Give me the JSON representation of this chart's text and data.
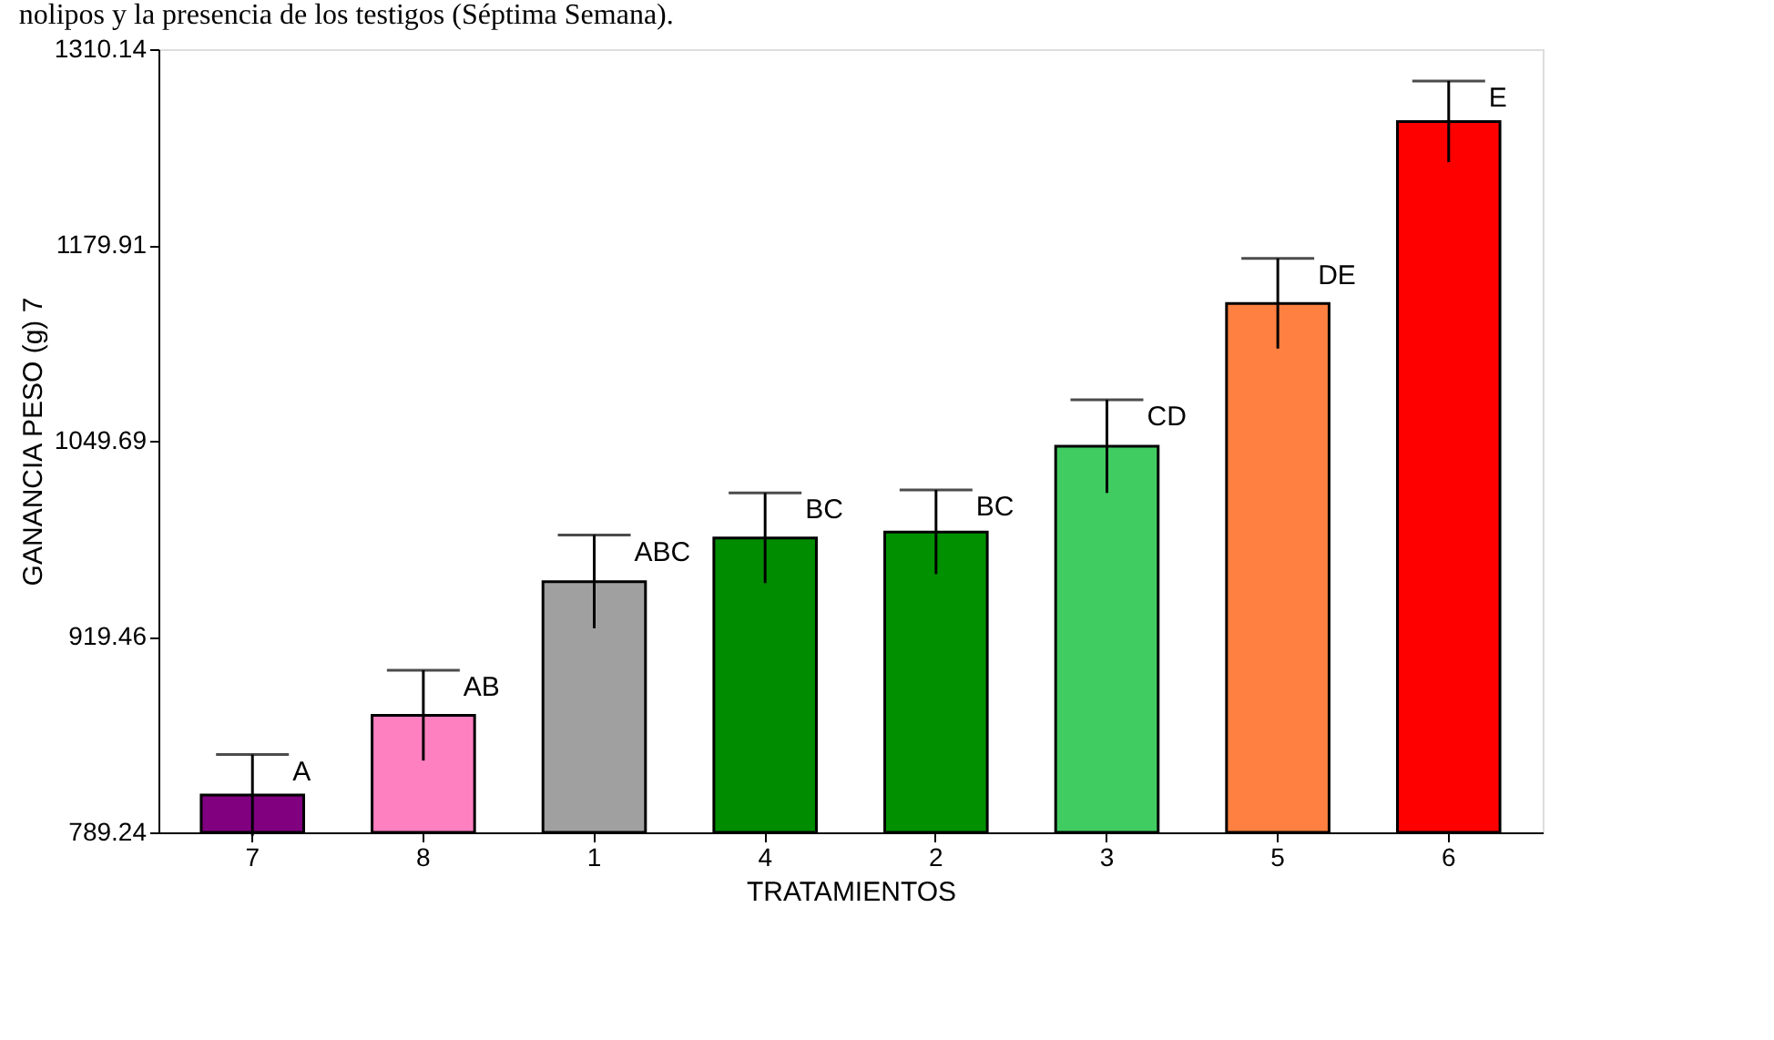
{
  "chart_data": {
    "type": "bar",
    "title": "nolipos y la presencia de los testigos (Séptima Semana).",
    "xlabel": "TRATAMIENTOS",
    "ylabel": "GANANCIA PESO (g) 7",
    "categories": [
      "7",
      "8",
      "1",
      "4",
      "2",
      "3",
      "5",
      "6"
    ],
    "values": [
      814,
      867,
      956,
      985,
      989,
      1046,
      1141,
      1262
    ],
    "colors": [
      "#800080",
      "#ff80c0",
      "#a0a0a0",
      "#008c00",
      "#009000",
      "#40cc60",
      "#ff8040",
      "#ff0000"
    ],
    "errors": [
      27,
      30,
      31,
      30,
      28,
      31,
      30,
      27
    ],
    "ylim": [
      789.24,
      1310.14
    ],
    "yticks": [
      789.24,
      919.46,
      1049.69,
      1179.91,
      1310.14
    ],
    "grid": false,
    "annotations": [
      {
        "text": "A",
        "x": "7",
        "y": 841
      },
      {
        "text": "AB",
        "x": "8",
        "y": 897
      },
      {
        "text": "ABC",
        "x": "1",
        "y": 987
      },
      {
        "text": "BC",
        "x": "4",
        "y": 1015
      },
      {
        "text": "BC",
        "x": "2",
        "y": 1017
      },
      {
        "text": "CD",
        "x": "3",
        "y": 1077
      },
      {
        "text": "DE",
        "x": "5",
        "y": 1171
      },
      {
        "text": "E",
        "x": "6",
        "y": 1289
      }
    ]
  }
}
